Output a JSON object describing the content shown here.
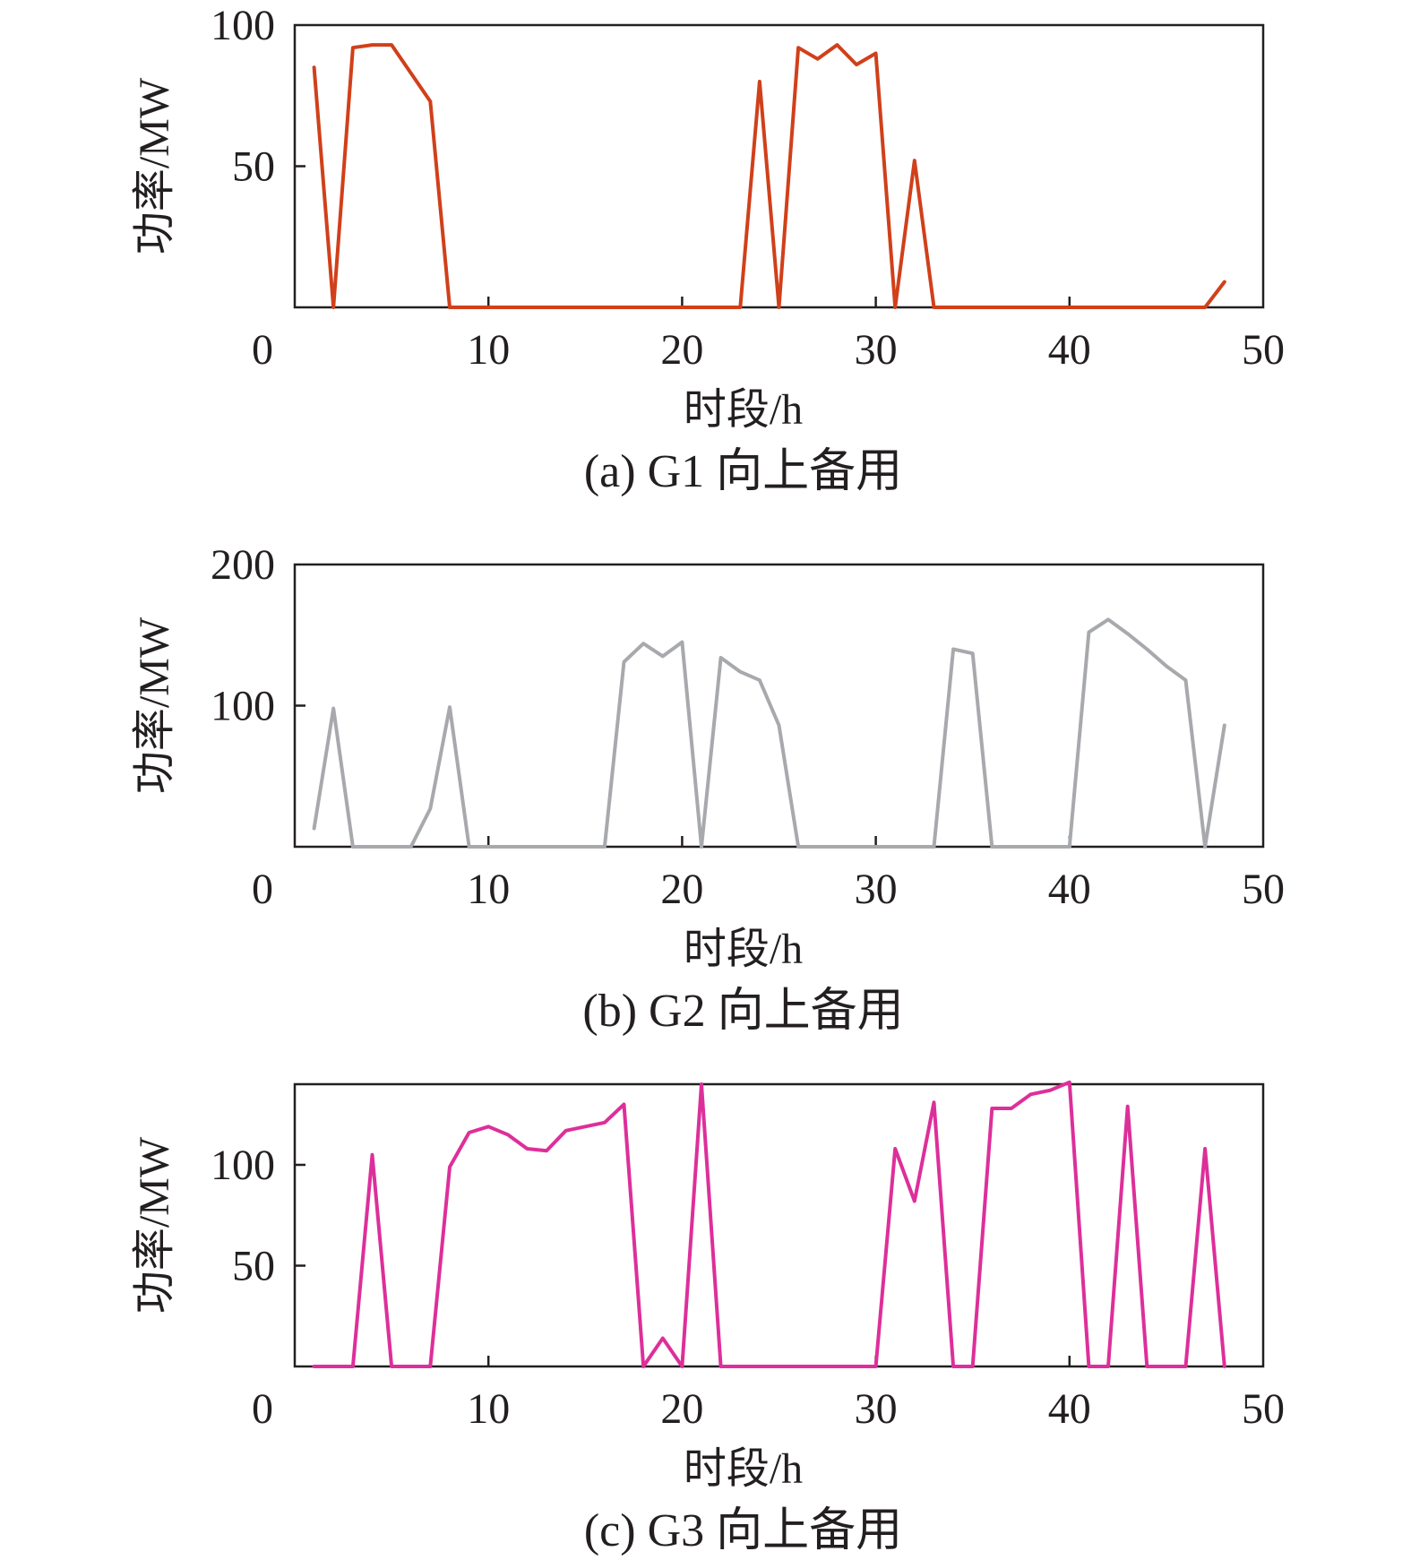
{
  "chart_data": [
    {
      "type": "line",
      "caption": "(a) G1 向上备用",
      "xlabel": "时段/h",
      "ylabel": "功率/MW",
      "xlim": [
        0,
        50
      ],
      "ylim": [
        0,
        100
      ],
      "xticks": [
        "0",
        "10",
        "20",
        "30",
        "40",
        "50"
      ],
      "yticks": [
        "50",
        "100"
      ],
      "grid": false,
      "series": [
        {
          "color": "#d0401a",
          "x": [
            1,
            2,
            3,
            4,
            5,
            6,
            7,
            8,
            9,
            10,
            11,
            12,
            13,
            14,
            15,
            16,
            17,
            18,
            19,
            20,
            21,
            22,
            23,
            24,
            25,
            26,
            27,
            28,
            29,
            30,
            31,
            32,
            33,
            34,
            35,
            36,
            37,
            38,
            39,
            40,
            41,
            42,
            43,
            44,
            45,
            46,
            47,
            48
          ],
          "y": [
            85,
            0,
            92,
            93,
            93,
            83,
            73,
            0,
            0,
            0,
            0,
            0,
            0,
            0,
            0,
            0,
            0,
            0,
            0,
            0,
            0,
            0,
            0,
            80,
            0,
            92,
            88,
            93,
            86,
            90,
            0,
            52,
            0,
            0,
            0,
            0,
            0,
            0,
            0,
            0,
            0,
            0,
            0,
            0,
            0,
            0,
            0,
            9
          ]
        }
      ]
    },
    {
      "type": "line",
      "caption": "(b) G2 向上备用",
      "xlabel": "时段/h",
      "ylabel": "功率/MW",
      "xlim": [
        0,
        50
      ],
      "ylim": [
        0,
        200
      ],
      "xticks": [
        "0",
        "10",
        "20",
        "30",
        "40",
        "50"
      ],
      "yticks": [
        "100",
        "200"
      ],
      "grid": false,
      "series": [
        {
          "color": "#a7a9ac",
          "x": [
            1,
            2,
            3,
            4,
            5,
            6,
            7,
            8,
            9,
            10,
            11,
            12,
            13,
            14,
            15,
            16,
            17,
            18,
            19,
            20,
            21,
            22,
            23,
            24,
            25,
            26,
            27,
            28,
            29,
            30,
            31,
            32,
            33,
            34,
            35,
            36,
            37,
            38,
            39,
            40,
            41,
            42,
            43,
            44,
            45,
            46,
            47,
            48
          ],
          "y": [
            13,
            98,
            0,
            0,
            0,
            0,
            27,
            99,
            0,
            0,
            0,
            0,
            0,
            0,
            0,
            0,
            131,
            144,
            135,
            145,
            0,
            134,
            124,
            118,
            86,
            0,
            0,
            0,
            0,
            0,
            0,
            0,
            0,
            140,
            137,
            0,
            0,
            0,
            0,
            0,
            152,
            161,
            151,
            140,
            128,
            118,
            0,
            86
          ]
        }
      ]
    },
    {
      "type": "line",
      "caption": "(c) G3 向上备用",
      "xlabel": "时段/h",
      "ylabel": "功率/MW",
      "xlim": [
        0,
        50
      ],
      "ylim": [
        0,
        140
      ],
      "xticks": [
        "0",
        "10",
        "20",
        "30",
        "40",
        "50"
      ],
      "yticks": [
        "50",
        "100"
      ],
      "grid": false,
      "series": [
        {
          "color": "#dd2f9a",
          "x": [
            1,
            2,
            3,
            4,
            5,
            6,
            7,
            8,
            9,
            10,
            11,
            12,
            13,
            14,
            15,
            16,
            17,
            18,
            19,
            20,
            21,
            22,
            23,
            24,
            25,
            26,
            27,
            28,
            29,
            30,
            31,
            32,
            33,
            34,
            35,
            36,
            37,
            38,
            39,
            40,
            41,
            42,
            43,
            44,
            45,
            46,
            47,
            48
          ],
          "y": [
            0,
            0,
            0,
            105,
            0,
            0,
            0,
            99,
            116,
            119,
            115,
            108,
            107,
            117,
            119,
            121,
            130,
            0,
            14,
            0,
            140,
            0,
            0,
            0,
            0,
            0,
            0,
            0,
            0,
            0,
            108,
            82,
            131,
            0,
            0,
            128,
            128,
            135,
            137,
            141,
            0,
            0,
            129,
            0,
            0,
            0,
            108,
            0
          ]
        }
      ]
    }
  ]
}
